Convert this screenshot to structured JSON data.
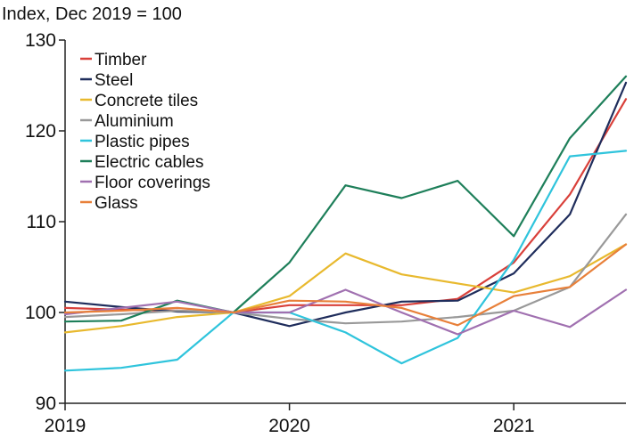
{
  "chart_data": {
    "type": "line",
    "ylabel": "Index, Dec 2019 = 100",
    "ylim": [
      90,
      130
    ],
    "yticks": [
      90,
      100,
      110,
      120,
      130
    ],
    "x": [
      "2019Q1",
      "2019Q2",
      "2019Q3",
      "2019Q4",
      "2020Q1",
      "2020Q2",
      "2020Q3",
      "2020Q4",
      "2021Q1",
      "2021Q2",
      "2021Q3"
    ],
    "xticks": [
      {
        "label": "2019",
        "at": "2019Q1"
      },
      {
        "label": "2020",
        "at": "2020Q1"
      },
      {
        "label": "2021",
        "at": "2021Q1"
      }
    ],
    "grid": false,
    "legend": "top-left",
    "series": [
      {
        "name": "Timber",
        "color": "#d9403a",
        "values": [
          100.5,
          100.3,
          100.2,
          100.0,
          100.8,
          100.8,
          100.8,
          101.5,
          105.5,
          113.0,
          123.5
        ]
      },
      {
        "name": "Steel",
        "color": "#1f2d5c",
        "values": [
          101.2,
          100.6,
          100.1,
          100.0,
          98.5,
          100.0,
          101.2,
          101.3,
          104.3,
          110.8,
          125.3
        ]
      },
      {
        "name": "Concrete tiles",
        "color": "#e8b92e",
        "values": [
          97.8,
          98.5,
          99.5,
          100.0,
          101.8,
          106.5,
          104.2,
          103.2,
          102.2,
          104.0,
          107.5
        ]
      },
      {
        "name": "Aluminium",
        "color": "#999999",
        "values": [
          99.5,
          99.8,
          100.2,
          100.0,
          99.3,
          98.8,
          99.0,
          99.5,
          100.2,
          102.8,
          110.8
        ]
      },
      {
        "name": "Plastic pipes",
        "color": "#2fc4dc",
        "values": [
          93.6,
          93.9,
          94.8,
          100.0,
          100.0,
          97.8,
          94.4,
          97.2,
          105.8,
          117.2,
          117.8
        ]
      },
      {
        "name": "Electric cables",
        "color": "#1e7f5a",
        "values": [
          99.0,
          99.1,
          101.3,
          100.0,
          105.5,
          114.0,
          112.6,
          114.5,
          108.4,
          119.2,
          126.0
        ]
      },
      {
        "name": "Floor coverings",
        "color": "#a070b0",
        "values": [
          99.8,
          100.5,
          101.2,
          100.0,
          100.0,
          102.5,
          100.0,
          97.6,
          100.2,
          98.4,
          102.5
        ]
      },
      {
        "name": "Glass",
        "color": "#e8803a",
        "values": [
          100.0,
          100.2,
          100.5,
          100.0,
          101.3,
          101.2,
          100.5,
          98.6,
          101.8,
          102.8,
          107.5
        ]
      }
    ]
  }
}
